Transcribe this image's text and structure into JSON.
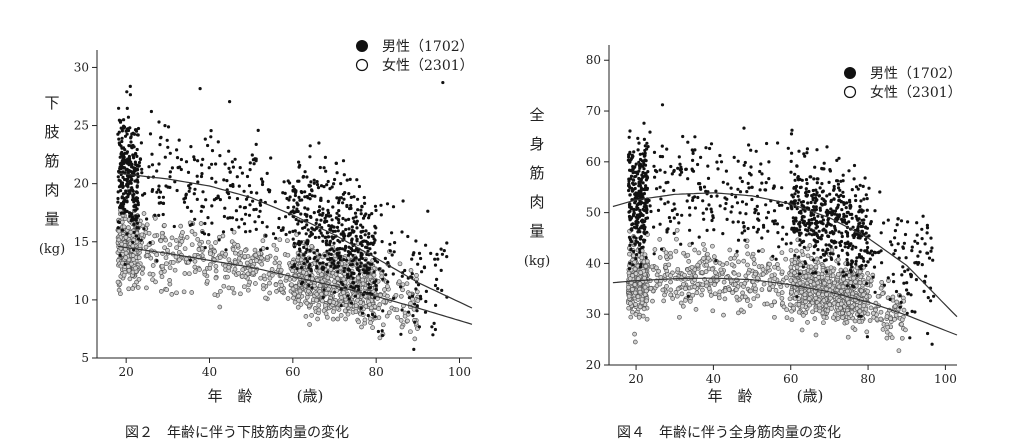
{
  "chart_data": [
    {
      "type": "scatter",
      "caption": "図２　年齢に伴う下肢筋肉量の変化",
      "ylabel_chars": [
        "下",
        "肢",
        "筋",
        "肉",
        "量",
        "(kg)"
      ],
      "xlabel": "年　齢",
      "xunit": "(歳)",
      "xlim": [
        13,
        103
      ],
      "ylim": [
        5,
        31.5
      ],
      "xticks": [
        20,
        40,
        60,
        80,
        100
      ],
      "yticks": [
        5,
        10,
        15,
        20,
        25,
        30
      ],
      "legend_position": "top-right",
      "series": [
        {
          "name": "男性（1702）",
          "marker": "filled-circle",
          "color": "#111111",
          "n": 1702,
          "age_range": [
            18,
            97
          ],
          "trend": {
            "x": [
              18,
              30,
              40,
              50,
              60,
              70,
              80,
              90,
              103
            ],
            "y": [
              20.9,
              20.4,
              19.8,
              18.8,
              17.3,
              15.6,
              13.6,
              11.5,
              9.3
            ]
          },
          "band": {
            "x": [
              18,
              30,
              40,
              50,
              60,
              70,
              80,
              90
            ],
            "y": [
              20.9,
              20.4,
              19.8,
              18.8,
              17.3,
              15.6,
              13.6,
              11.5
            ],
            "spread": 2.6
          }
        },
        {
          "name": "女性（2301）",
          "marker": "open-circle",
          "color": "#555555",
          "n": 2301,
          "age_range": [
            18,
            90
          ],
          "trend": {
            "x": [
              18,
              30,
              40,
              50,
              60,
              70,
              80,
              90,
              103
            ],
            "y": [
              14.6,
              14.0,
              13.4,
              12.8,
              12.0,
              11.2,
              10.3,
              9.3,
              7.9
            ]
          },
          "band": {
            "x": [
              18,
              30,
              40,
              50,
              60,
              70,
              80,
              90
            ],
            "y": [
              14.6,
              14.0,
              13.4,
              12.8,
              12.0,
              11.2,
              10.3,
              9.3
            ],
            "spread": 1.6
          }
        }
      ]
    },
    {
      "type": "scatter",
      "caption": "図４　年齢に伴う全身筋肉量の変化",
      "ylabel_chars": [
        "全",
        "身",
        "筋",
        "肉",
        "量",
        "(kg)"
      ],
      "xlabel": "年　齢",
      "xunit": "(歳)",
      "xlim": [
        13,
        103
      ],
      "ylim": [
        20,
        83
      ],
      "xticks": [
        20,
        40,
        60,
        80,
        100
      ],
      "yticks": [
        20,
        30,
        40,
        50,
        60,
        70,
        80
      ],
      "legend_position": "top-right",
      "series": [
        {
          "name": "男性（1702）",
          "marker": "filled-circle",
          "color": "#111111",
          "n": 1702,
          "age_range": [
            18,
            97
          ],
          "trend": {
            "x": [
              14,
              20,
              30,
              40,
              50,
              60,
              70,
              80,
              90,
              103
            ],
            "y": [
              51.2,
              52.5,
              53.6,
              53.9,
              53.3,
              51.7,
              49.0,
              45.0,
              39.6,
              29.5
            ]
          },
          "band": {
            "x": [
              18,
              30,
              40,
              50,
              60,
              70,
              80,
              90
            ],
            "y": [
              52.2,
              53.6,
              53.9,
              53.3,
              51.7,
              49.0,
              45.0,
              39.6
            ],
            "spread": 5.5
          }
        },
        {
          "name": "女性（2301）",
          "marker": "open-circle",
          "color": "#555555",
          "n": 2301,
          "age_range": [
            18,
            90
          ],
          "trend": {
            "x": [
              14,
              20,
              30,
              40,
              50,
              60,
              70,
              80,
              90,
              103
            ],
            "y": [
              36.2,
              36.6,
              37.0,
              37.1,
              36.8,
              35.8,
              34.4,
              32.4,
              29.8,
              25.9
            ]
          },
          "band": {
            "x": [
              18,
              30,
              40,
              50,
              60,
              70,
              80,
              90
            ],
            "y": [
              36.4,
              37.0,
              37.1,
              36.8,
              35.8,
              34.4,
              32.4,
              29.8
            ],
            "spread": 3.4
          }
        }
      ]
    }
  ]
}
